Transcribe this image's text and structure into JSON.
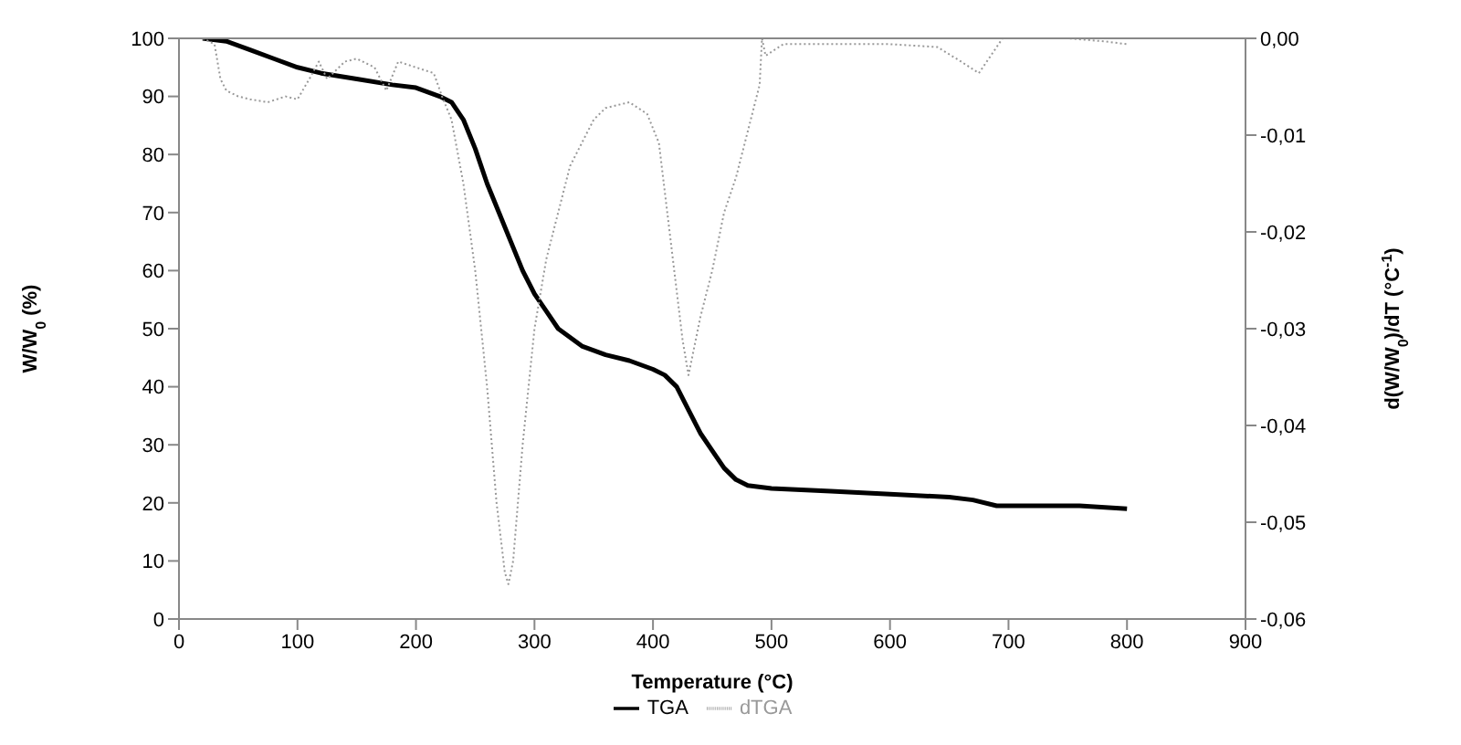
{
  "chart_data": {
    "type": "line",
    "xlabel": "Temperature (°C)",
    "ylabel": "W/W$_{0}$ (%)",
    "y2label": "d(W/W$_{0}$)/dT (°C$^{-1}$)",
    "xlim": [
      0,
      900
    ],
    "xticks": [
      0,
      100,
      200,
      300,
      400,
      500,
      600,
      700,
      800,
      900
    ],
    "ylim": [
      0,
      100
    ],
    "yticks": [
      0,
      10,
      20,
      30,
      40,
      50,
      60,
      70,
      80,
      90,
      100
    ],
    "y2lim": [
      -0.06,
      0
    ],
    "y2ticks": [
      {
        "value": -0.06,
        "label": "-0,06"
      },
      {
        "value": -0.05,
        "label": "-0,05"
      },
      {
        "value": -0.04,
        "label": "-0,04"
      },
      {
        "value": -0.03,
        "label": "-0,03"
      },
      {
        "value": -0.02,
        "label": "-0,02"
      },
      {
        "value": -0.01,
        "label": "-0,01"
      },
      {
        "value": 0,
        "label": "0,00"
      }
    ],
    "grid": false,
    "legend": "bottom",
    "marker": "none",
    "series": [
      {
        "name": "TGA",
        "color": "#000000",
        "line_style": "solid",
        "x": [
          20,
          40,
          60,
          80,
          100,
          120,
          150,
          180,
          200,
          220,
          230,
          240,
          250,
          260,
          270,
          280,
          290,
          300,
          310,
          320,
          340,
          360,
          380,
          400,
          410,
          420,
          430,
          440,
          450,
          460,
          470,
          480,
          500,
          550,
          600,
          650,
          670,
          690,
          720,
          760,
          800
        ],
        "values": [
          100,
          99.5,
          98,
          96.5,
          95,
          94,
          93,
          92,
          91.5,
          90,
          89,
          86,
          81,
          75,
          70,
          65,
          60,
          56,
          53,
          50,
          47,
          45.5,
          44.5,
          43,
          42,
          40,
          36,
          32,
          29,
          26,
          24,
          23,
          22.5,
          22,
          21.5,
          21,
          20.5,
          19.5,
          19.5,
          19.5,
          19
        ]
      },
      {
        "name": "dTGA",
        "color": "#999999",
        "line_style": "dotted",
        "axis": "y2",
        "x": [
          20,
          30,
          35,
          40,
          50,
          60,
          75,
          90,
          100,
          110,
          118,
          125,
          140,
          150,
          165,
          175,
          185,
          200,
          215,
          222,
          230,
          240,
          250,
          260,
          268,
          275,
          278,
          282,
          290,
          300,
          310,
          320,
          330,
          340,
          350,
          360,
          380,
          395,
          405,
          415,
          425,
          430,
          440,
          450,
          460,
          470,
          480,
          490,
          492,
          495,
          510,
          550,
          600,
          640,
          660,
          675,
          685,
          695,
          750,
          780,
          800
        ],
        "values": [
          0,
          -0.0006,
          -0.0042,
          -0.0054,
          -0.006,
          -0.0063,
          -0.0066,
          -0.006,
          -0.0063,
          -0.0042,
          -0.0024,
          -0.0042,
          -0.0024,
          -0.0021,
          -0.003,
          -0.0054,
          -0.0024,
          -0.003,
          -0.0036,
          -0.006,
          -0.0084,
          -0.015,
          -0.024,
          -0.036,
          -0.048,
          -0.0552,
          -0.0564,
          -0.054,
          -0.042,
          -0.03,
          -0.0228,
          -0.018,
          -0.0132,
          -0.0108,
          -0.0084,
          -0.0072,
          -0.0066,
          -0.0078,
          -0.0108,
          -0.021,
          -0.0312,
          -0.0348,
          -0.0288,
          -0.024,
          -0.018,
          -0.0144,
          -0.0096,
          -0.0048,
          0,
          -0.0018,
          -0.0006,
          -0.0006,
          -0.0006,
          -0.0009,
          -0.0024,
          -0.0036,
          -0.0018,
          0,
          0,
          -0.0003,
          -0.0006
        ]
      }
    ]
  }
}
